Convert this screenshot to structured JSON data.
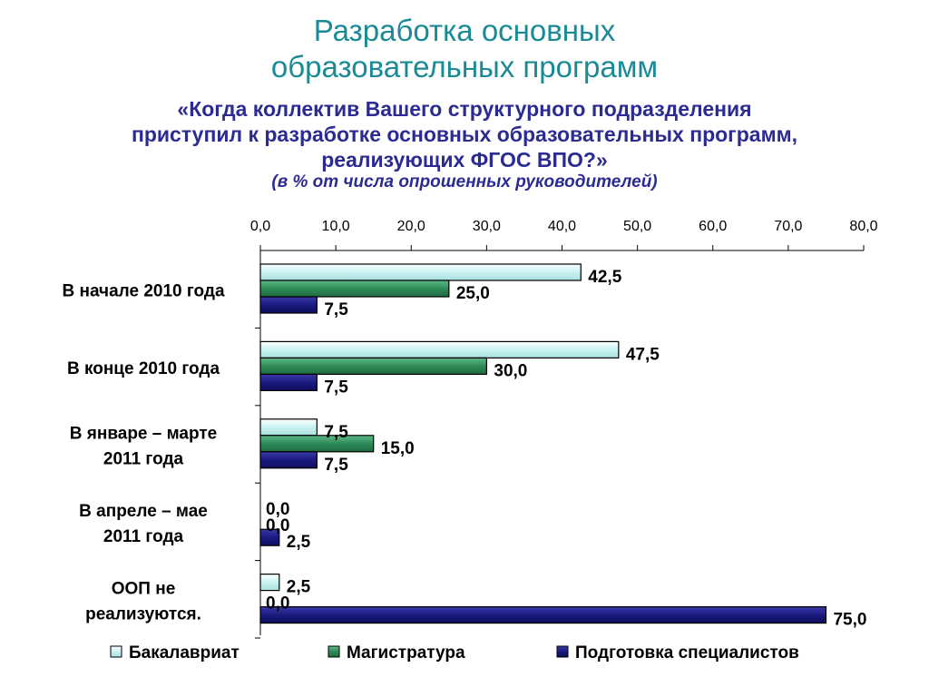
{
  "heading": {
    "title_line1": "Разработка основных",
    "title_line2": "образовательных программ",
    "question_line1": "«Когда коллектив Вашего структурного подразделения",
    "question_line2": "приступил к разработке основных образовательных программ,",
    "question_line3": "реализующих ФГОС ВПО?»",
    "note": "(в % от числа опрошенных руководителей)"
  },
  "chart_data": {
    "type": "bar",
    "orientation": "horizontal",
    "categories": [
      [
        "В начале 2010 года"
      ],
      [
        "В конце 2010 года"
      ],
      [
        "В январе – марте",
        "2011 года"
      ],
      [
        "В апреле – мае",
        "2011 года"
      ],
      [
        "ООП не",
        "реализуются."
      ]
    ],
    "series": [
      {
        "name": "Бакалавриат",
        "values": [
          42.5,
          47.5,
          7.5,
          0.0,
          2.5
        ],
        "labels": [
          "42,5",
          "47,5",
          "7,5",
          "0,0",
          "2,5"
        ],
        "color": "#ccf5f5"
      },
      {
        "name": "Магистратура",
        "values": [
          25.0,
          30.0,
          15.0,
          0.0,
          0.0
        ],
        "labels": [
          "25,0",
          "30,0",
          "15,0",
          "0,0",
          "0,0"
        ],
        "color": "#2e8b57"
      },
      {
        "name": "Подготовка специалистов",
        "values": [
          7.5,
          7.5,
          7.5,
          2.5,
          75.0
        ],
        "labels": [
          "7,5",
          "7,5",
          "7,5",
          "2,5",
          "75,0"
        ],
        "color": "#1a1a80"
      }
    ],
    "xlim": [
      0,
      80
    ],
    "ticks": [
      0,
      10,
      20,
      30,
      40,
      50,
      60,
      70,
      80
    ],
    "tick_labels": [
      "0,0",
      "10,0",
      "20,0",
      "30,0",
      "40,0",
      "50,0",
      "60,0",
      "70,0",
      "80,0"
    ],
    "axis_position": "top",
    "grid": false,
    "legend_position": "bottom"
  }
}
